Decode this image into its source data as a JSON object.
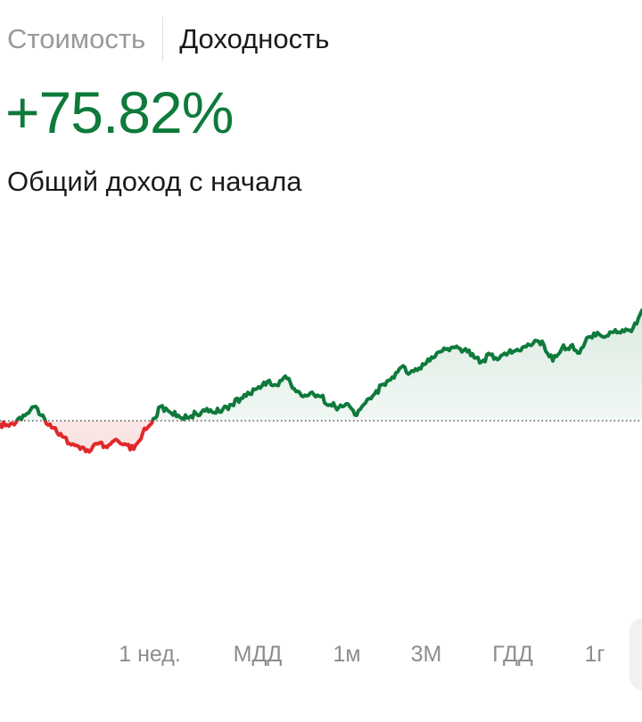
{
  "tabs": [
    {
      "label": "Стоимость",
      "active": false
    },
    {
      "label": "Доходность",
      "active": true
    }
  ],
  "summary": {
    "value": "+75.82%",
    "label": "Общий доход с начала"
  },
  "colors": {
    "positive": "#0e7a3b",
    "negative": "#e0282a",
    "baseline": "#555555",
    "muted": "#8d8d8d"
  },
  "ranges": [
    {
      "label": "1 нед."
    },
    {
      "label": "МДД"
    },
    {
      "label": "1м"
    },
    {
      "label": "3М"
    },
    {
      "label": "ГДД"
    },
    {
      "label": "1г"
    }
  ],
  "chart_data": {
    "type": "area",
    "baseline": 0,
    "x": [
      0,
      10,
      20,
      30,
      40,
      50,
      60,
      70,
      80,
      90,
      100,
      110,
      120,
      130,
      140,
      150,
      160,
      170,
      180,
      190,
      200,
      210,
      220,
      230,
      240,
      250,
      260,
      270,
      280,
      290,
      300,
      310,
      320,
      330,
      340,
      350,
      360,
      370,
      380,
      390,
      400,
      410,
      420,
      430,
      440,
      450,
      460,
      470,
      480,
      490,
      500,
      510,
      520,
      530,
      540,
      550,
      560,
      570,
      580,
      590,
      600,
      610,
      620,
      630,
      640,
      650,
      660,
      670,
      680,
      690,
      700,
      710,
      720
    ],
    "values": [
      -0.4,
      -0.6,
      0.2,
      0.8,
      1.6,
      0.2,
      -0.8,
      -1.8,
      -2.7,
      -3.2,
      -3.5,
      -2.6,
      -3.0,
      -2.1,
      -2.6,
      -3.2,
      -1.4,
      -0.3,
      1.6,
      1.0,
      0.6,
      0.3,
      0.8,
      1.1,
      0.9,
      1.3,
      1.8,
      2.5,
      3.0,
      3.8,
      4.4,
      4.0,
      5.0,
      3.6,
      2.7,
      3.2,
      2.7,
      1.8,
      1.5,
      1.9,
      0.6,
      2.0,
      3.0,
      4.1,
      4.9,
      6.0,
      5.4,
      5.9,
      6.9,
      7.6,
      8.0,
      8.2,
      7.9,
      7.5,
      6.6,
      7.4,
      7.0,
      7.6,
      8.0,
      8.3,
      9.0,
      8.5,
      6.7,
      8.1,
      8.4,
      7.6,
      9.4,
      9.9,
      9.5,
      10.2,
      10.0,
      10.4,
      12.4
    ]
  }
}
